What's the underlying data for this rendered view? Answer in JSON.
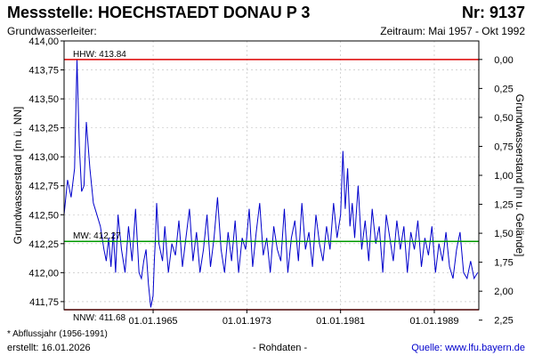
{
  "header": {
    "title": "Messstelle: HOECHSTAEDT DONAU P 3",
    "nr": "Nr: 9137",
    "aquifer": "Grundwasserleiter:",
    "period": "Zeitraum: Mai 1957 - Okt 1992"
  },
  "footer": {
    "footnote": "* Abflussjahr (1956-1991)",
    "created": "erstellt:  16.01.2026",
    "raw": "- Rohdaten -",
    "source": "Quelle: www.lfu.bayern.de"
  },
  "colors": {
    "series": "#0000cc",
    "hhw_nnw": "#dd0000",
    "mw": "#009900",
    "grid": "#bbbbbb"
  },
  "chart_data": {
    "type": "line",
    "ylabel": "Grundwasserstand [m ü. NN]",
    "y2label": "Grundwasserstand [m u. Gelände]",
    "ylim": [
      411.68,
      414.0
    ],
    "yticks": [
      "414,00",
      "413,75",
      "413,50",
      "413,25",
      "413,00",
      "412,75",
      "412,50",
      "412,25",
      "412,00",
      "411,75"
    ],
    "ytick_values": [
      414.0,
      413.75,
      413.5,
      413.25,
      413.0,
      412.75,
      412.5,
      412.25,
      412.0,
      411.75
    ],
    "y2ticks": [
      "0,00",
      "0,25",
      "0,50",
      "0,75",
      "1,00",
      "1,25",
      "1,50",
      "1,75",
      "2,00",
      "2,25"
    ],
    "y2tick_values": [
      0.0,
      0.25,
      0.5,
      0.75,
      1.0,
      1.25,
      1.5,
      1.75,
      2.0,
      2.25
    ],
    "y2_zero_at": 413.84,
    "xlim": [
      1957.4,
      1992.8
    ],
    "xticks": [
      "01.01.1965",
      "01.01.1973",
      "01.01.1981",
      "01.01.1989"
    ],
    "xtick_values": [
      1965.0,
      1973.0,
      1981.0,
      1989.0
    ],
    "reference_lines": [
      {
        "name": "HHW",
        "label": "HHW: 413.84",
        "value": 413.84,
        "color": "#dd0000"
      },
      {
        "name": "MW",
        "label": "MW: 412.27",
        "value": 412.27,
        "color": "#009900"
      },
      {
        "name": "NNW",
        "label": "NNW: 411.68",
        "value": 411.68,
        "color": "#dd0000"
      }
    ],
    "series": [
      {
        "x": [
          1957.4,
          1957.7,
          1958.0,
          1958.3,
          1958.5,
          1958.7,
          1958.9,
          1959.1,
          1959.3,
          1959.6,
          1959.9,
          1960.2,
          1960.5,
          1960.8,
          1961.0,
          1961.2,
          1961.4,
          1961.6,
          1961.8,
          1962.0,
          1962.3,
          1962.6,
          1962.9,
          1963.2,
          1963.5,
          1963.8,
          1964.0,
          1964.2,
          1964.4,
          1964.6,
          1964.8,
          1965.0,
          1965.1,
          1965.2,
          1965.3,
          1965.5,
          1965.8,
          1966.0,
          1966.3,
          1966.6,
          1966.9,
          1967.2,
          1967.5,
          1967.8,
          1968.1,
          1968.4,
          1968.7,
          1969.0,
          1969.3,
          1969.6,
          1969.9,
          1970.2,
          1970.5,
          1970.8,
          1971.1,
          1971.4,
          1971.7,
          1972.0,
          1972.3,
          1972.6,
          1972.9,
          1973.2,
          1973.5,
          1973.8,
          1974.1,
          1974.4,
          1974.7,
          1975.0,
          1975.3,
          1975.6,
          1975.9,
          1976.2,
          1976.5,
          1976.8,
          1977.1,
          1977.4,
          1977.7,
          1978.0,
          1978.3,
          1978.6,
          1978.9,
          1979.2,
          1979.5,
          1979.8,
          1980.1,
          1980.4,
          1980.7,
          1981.0,
          1981.2,
          1981.4,
          1981.6,
          1981.8,
          1982.0,
          1982.2,
          1982.5,
          1982.8,
          1983.1,
          1983.4,
          1983.7,
          1984.0,
          1984.3,
          1984.6,
          1984.9,
          1985.2,
          1985.5,
          1985.8,
          1986.1,
          1986.4,
          1986.7,
          1987.0,
          1987.3,
          1987.6,
          1987.9,
          1988.2,
          1988.5,
          1988.8,
          1989.1,
          1989.4,
          1989.7,
          1990.0,
          1990.3,
          1990.6,
          1990.9,
          1991.2,
          1991.5,
          1991.8,
          1992.1,
          1992.4,
          1992.7
        ],
        "values": [
          412.5,
          412.8,
          412.65,
          412.9,
          413.84,
          413.1,
          412.7,
          412.75,
          413.3,
          412.9,
          412.6,
          412.5,
          412.4,
          412.2,
          412.1,
          412.3,
          412.05,
          412.35,
          412.0,
          412.5,
          412.2,
          412.0,
          412.4,
          412.1,
          412.55,
          412.0,
          411.95,
          412.1,
          412.2,
          411.9,
          411.7,
          411.8,
          412.1,
          412.3,
          412.6,
          412.25,
          412.1,
          412.4,
          412.0,
          412.25,
          412.15,
          412.45,
          412.05,
          412.3,
          412.55,
          412.1,
          412.35,
          412.0,
          412.2,
          412.5,
          412.05,
          412.3,
          412.65,
          412.2,
          412.0,
          412.35,
          412.1,
          412.45,
          412.0,
          412.3,
          412.2,
          412.55,
          412.05,
          412.35,
          412.6,
          412.15,
          412.3,
          412.0,
          412.4,
          412.2,
          412.1,
          412.55,
          412.0,
          412.3,
          412.45,
          412.1,
          412.6,
          412.2,
          412.35,
          412.05,
          412.5,
          412.25,
          412.1,
          412.4,
          412.2,
          412.6,
          412.3,
          412.5,
          413.05,
          412.55,
          412.9,
          412.4,
          412.6,
          412.3,
          412.75,
          412.2,
          412.45,
          412.1,
          412.55,
          412.25,
          412.4,
          412.0,
          412.5,
          412.3,
          412.1,
          412.45,
          412.2,
          412.4,
          412.0,
          412.35,
          412.2,
          412.45,
          412.05,
          412.3,
          412.15,
          412.4,
          412.0,
          412.25,
          412.1,
          412.35,
          412.05,
          411.95,
          412.2,
          412.35,
          412.0,
          411.95,
          412.1,
          411.95,
          412.0
        ]
      }
    ]
  }
}
